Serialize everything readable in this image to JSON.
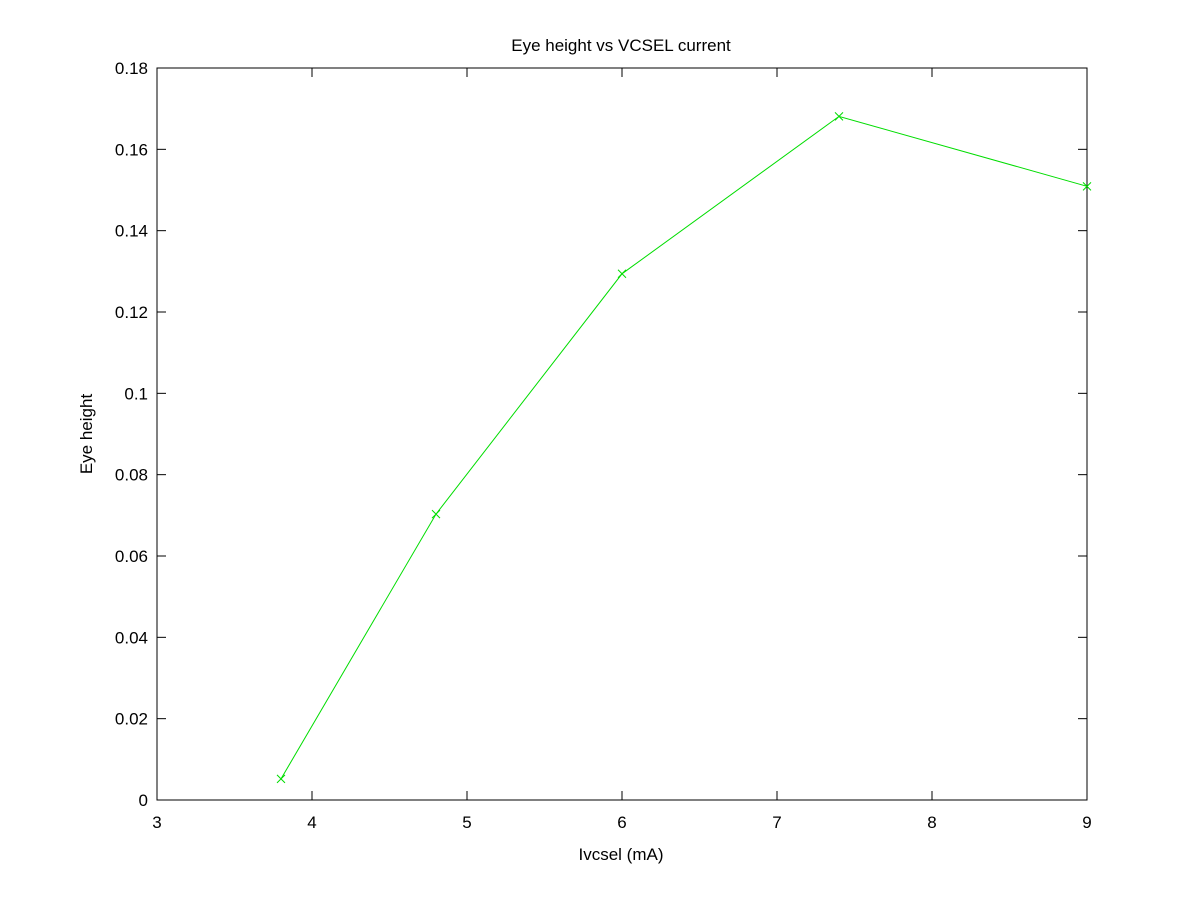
{
  "chart_data": {
    "type": "line",
    "title": "Eye height vs VCSEL current",
    "xlabel": "Ivcsel (mA)",
    "ylabel": "Eye height",
    "xlim": [
      3,
      9
    ],
    "ylim": [
      0,
      0.18
    ],
    "xticks": [
      "3",
      "4",
      "5",
      "6",
      "7",
      "8",
      "9"
    ],
    "yticks": [
      "0",
      "0.02",
      "0.04",
      "0.06",
      "0.08",
      "0.1",
      "0.12",
      "0.14",
      "0.16",
      "0.18"
    ],
    "grid": false,
    "legend": false,
    "series": [
      {
        "color": "#00dd00",
        "marker": "x",
        "x": [
          3.8,
          4.8,
          6.0,
          7.4,
          9.0
        ],
        "y": [
          0.0052,
          0.0703,
          0.1294,
          0.1681,
          0.1509
        ]
      }
    ]
  }
}
